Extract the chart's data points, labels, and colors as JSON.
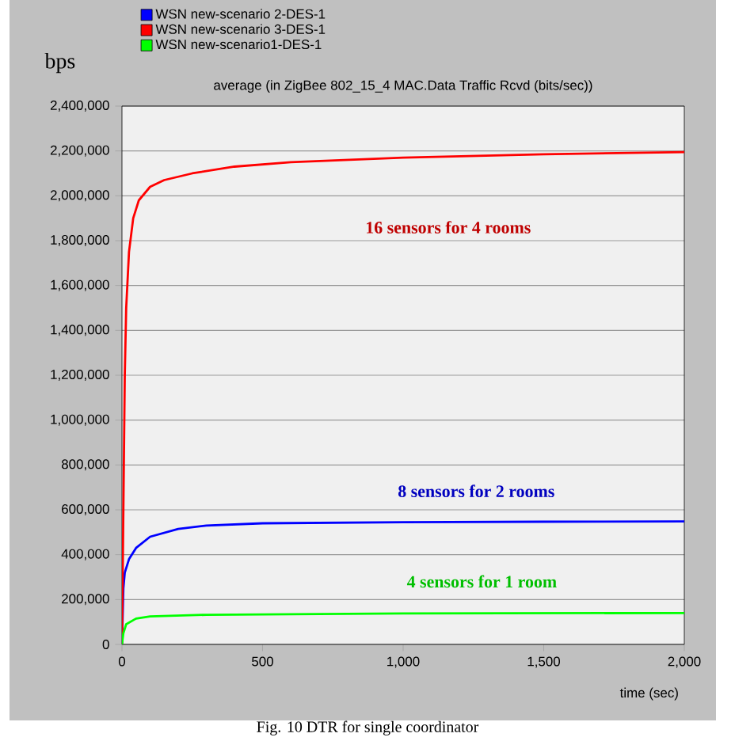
{
  "chart_data": {
    "type": "line",
    "title": "average (in ZigBee 802_15_4 MAC.Data Traffic Rcvd (bits/sec))",
    "xlabel": "time (sec)",
    "ylabel": "bps",
    "xlim": [
      0,
      2000
    ],
    "ylim": [
      0,
      2400000
    ],
    "xticks": [
      0,
      500,
      {
        "value": 1000,
        "label": "1,000"
      },
      {
        "value": 1500,
        "label": "1,500"
      },
      {
        "value": 2000,
        "label": "2,000"
      }
    ],
    "yticks": [
      0,
      {
        "value": 200000,
        "label": "200,000"
      },
      {
        "value": 400000,
        "label": "400,000"
      },
      {
        "value": 600000,
        "label": "600,000"
      },
      {
        "value": 800000,
        "label": "800,000"
      },
      {
        "value": 1000000,
        "label": "1,000,000"
      },
      {
        "value": 1200000,
        "label": "1,200,000"
      },
      {
        "value": 1400000,
        "label": "1,400,000"
      },
      {
        "value": 1600000,
        "label": "1,600,000"
      },
      {
        "value": 1800000,
        "label": "1,800,000"
      },
      {
        "value": 2000000,
        "label": "2,000,000"
      },
      {
        "value": 2200000,
        "label": "2,200,000"
      },
      {
        "value": 2400000,
        "label": "2,400,000"
      }
    ],
    "grid": "y",
    "legend": "top left",
    "marker": "none",
    "line_style": "solid",
    "series": [
      {
        "name": "WSN new-scenario 2-DES-1",
        "color": "#0000ff",
        "x": [
          0,
          5,
          10,
          25,
          50,
          100,
          200,
          300,
          500,
          1000,
          1500,
          2000
        ],
        "values": [
          0,
          250000,
          320000,
          380000,
          430000,
          480000,
          515000,
          530000,
          540000,
          545000,
          547000,
          548000
        ]
      },
      {
        "name": "WSN new-scenario 3-DES-1",
        "color": "#ff0000",
        "x": [
          0,
          5,
          10,
          15,
          25,
          40,
          60,
          100,
          150,
          250,
          400,
          600,
          1000,
          1500,
          2000
        ],
        "values": [
          0,
          600000,
          1200000,
          1500000,
          1750000,
          1900000,
          1980000,
          2040000,
          2070000,
          2100000,
          2130000,
          2150000,
          2170000,
          2185000,
          2195000
        ]
      },
      {
        "name": "WSN new-scenario1-DES-1",
        "color": "#00ff00",
        "x": [
          0,
          5,
          15,
          50,
          100,
          300,
          1000,
          2000
        ],
        "values": [
          0,
          50000,
          90000,
          115000,
          125000,
          132000,
          138000,
          140000
        ]
      }
    ],
    "annotations": [
      "8 sensors for 2 rooms",
      "16 sensors for 4 rooms",
      "4 sensors for 1 room",
      "Fig. 10 DTR for single coordinator"
    ]
  }
}
